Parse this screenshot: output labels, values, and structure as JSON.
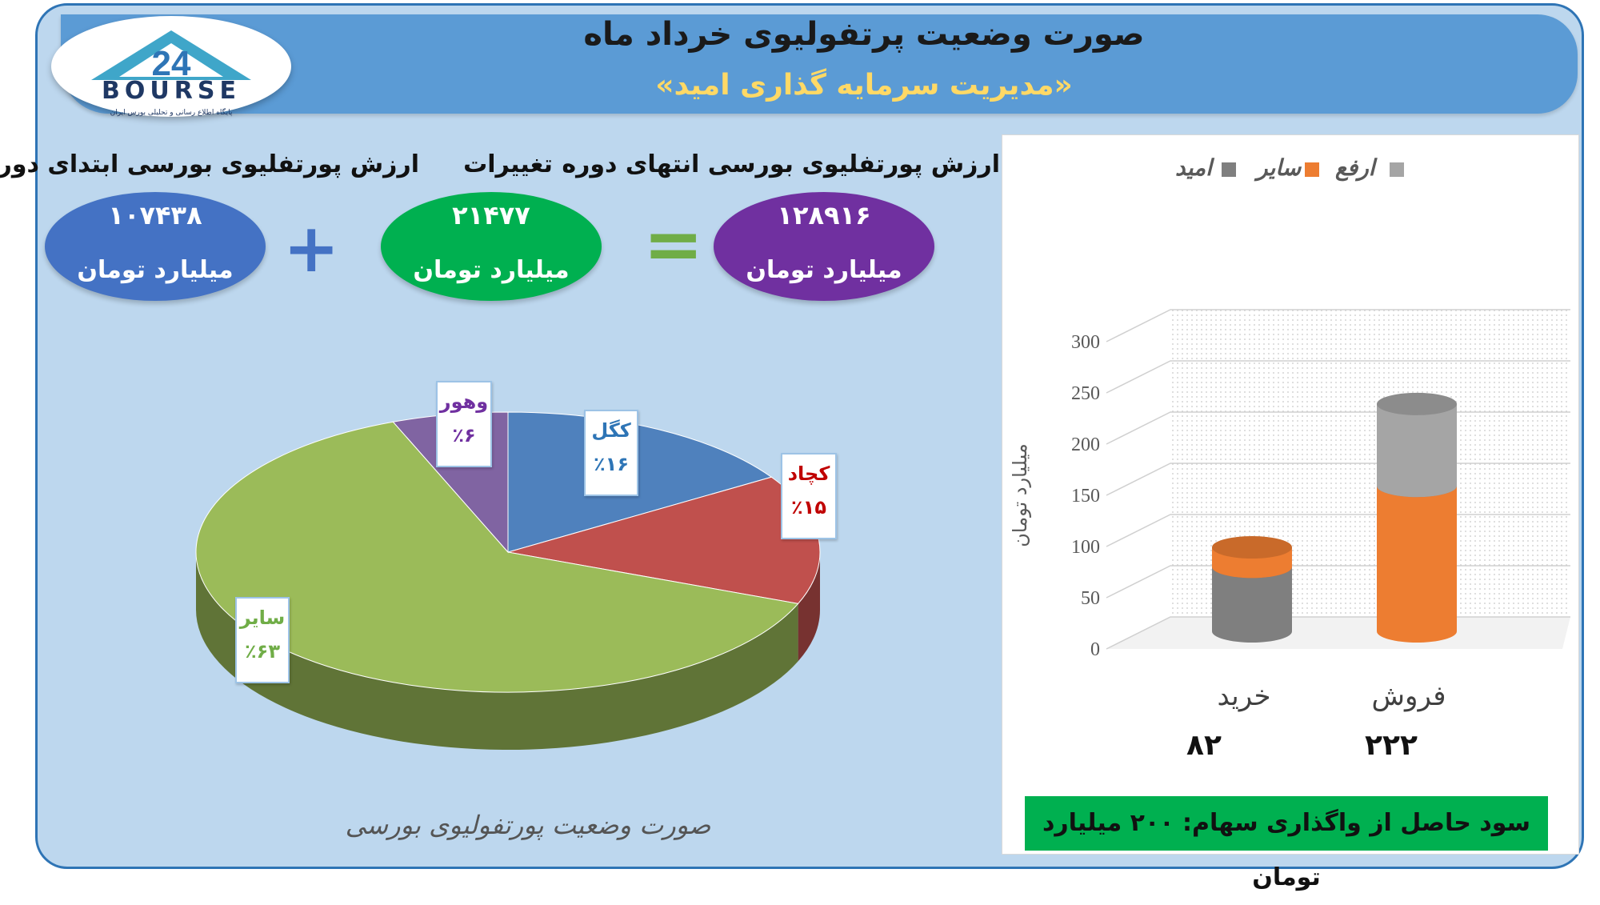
{
  "header": {
    "title": "صورت وضعیت پرتفولیوی خرداد ماه",
    "subtitle": "«مدیریت سرمایه گذاری امید»"
  },
  "logo": {
    "word": "BOURSE",
    "number": "24",
    "tagline": "پایگاه اطلاع رسانی و تحلیلی بورس ایران"
  },
  "equation": {
    "start": {
      "label": "ارزش پورتفلیوی بورسی ابتدای دوره",
      "value": "۱۰۷۴۳۸",
      "unit": "میلیارد تومان",
      "color": "#4472c4"
    },
    "change": {
      "label": "تغییرات",
      "value": "۲۱۴۷۷",
      "unit": "میلیارد تومان",
      "color": "#00b050"
    },
    "end": {
      "label": "ارزش پورتفلیوی بورسی انتهای دوره",
      "value": "۱۲۸۹۱۶",
      "unit": "میلیارد تومان",
      "color": "#7030a0"
    },
    "plus": "+",
    "equals": "="
  },
  "chart_data": [
    {
      "type": "pie",
      "title": "صورت وضعیت پورتفولیوی بورسی",
      "slices": [
        {
          "name": "کگل",
          "value": 16,
          "label": "٪۱۶",
          "color": "#4f81bd"
        },
        {
          "name": "کچاد",
          "value": 15,
          "label": "٪۱۵",
          "color": "#c0504d"
        },
        {
          "name": "سایر",
          "value": 63,
          "label": "٪۶۳",
          "color": "#9bbb59"
        },
        {
          "name": "وهور",
          "value": 6,
          "label": "٪۶",
          "color": "#8064a2"
        }
      ]
    },
    {
      "type": "bar",
      "stacked": true,
      "categories": [
        "خرید",
        "فروش"
      ],
      "category_totals": [
        "۸۲",
        "۲۲۲"
      ],
      "series": [
        {
          "name": "امید",
          "values": [
            63,
            0
          ],
          "color": "#7f7f7f"
        },
        {
          "name": "سایر",
          "values": [
            19,
            142
          ],
          "color": "#ed7d31"
        },
        {
          "name": "ارفع",
          "values": [
            0,
            80
          ],
          "color": "#a5a5a5"
        }
      ],
      "ylabel": "میلیارد تومان",
      "ylim": [
        0,
        300
      ],
      "yticks": [
        0,
        50,
        100,
        150,
        200,
        250,
        300
      ],
      "legend_position": "top",
      "footer": "سود حاصل از واگذاری سهام: ۲۰۰ میلیارد تومان"
    }
  ]
}
